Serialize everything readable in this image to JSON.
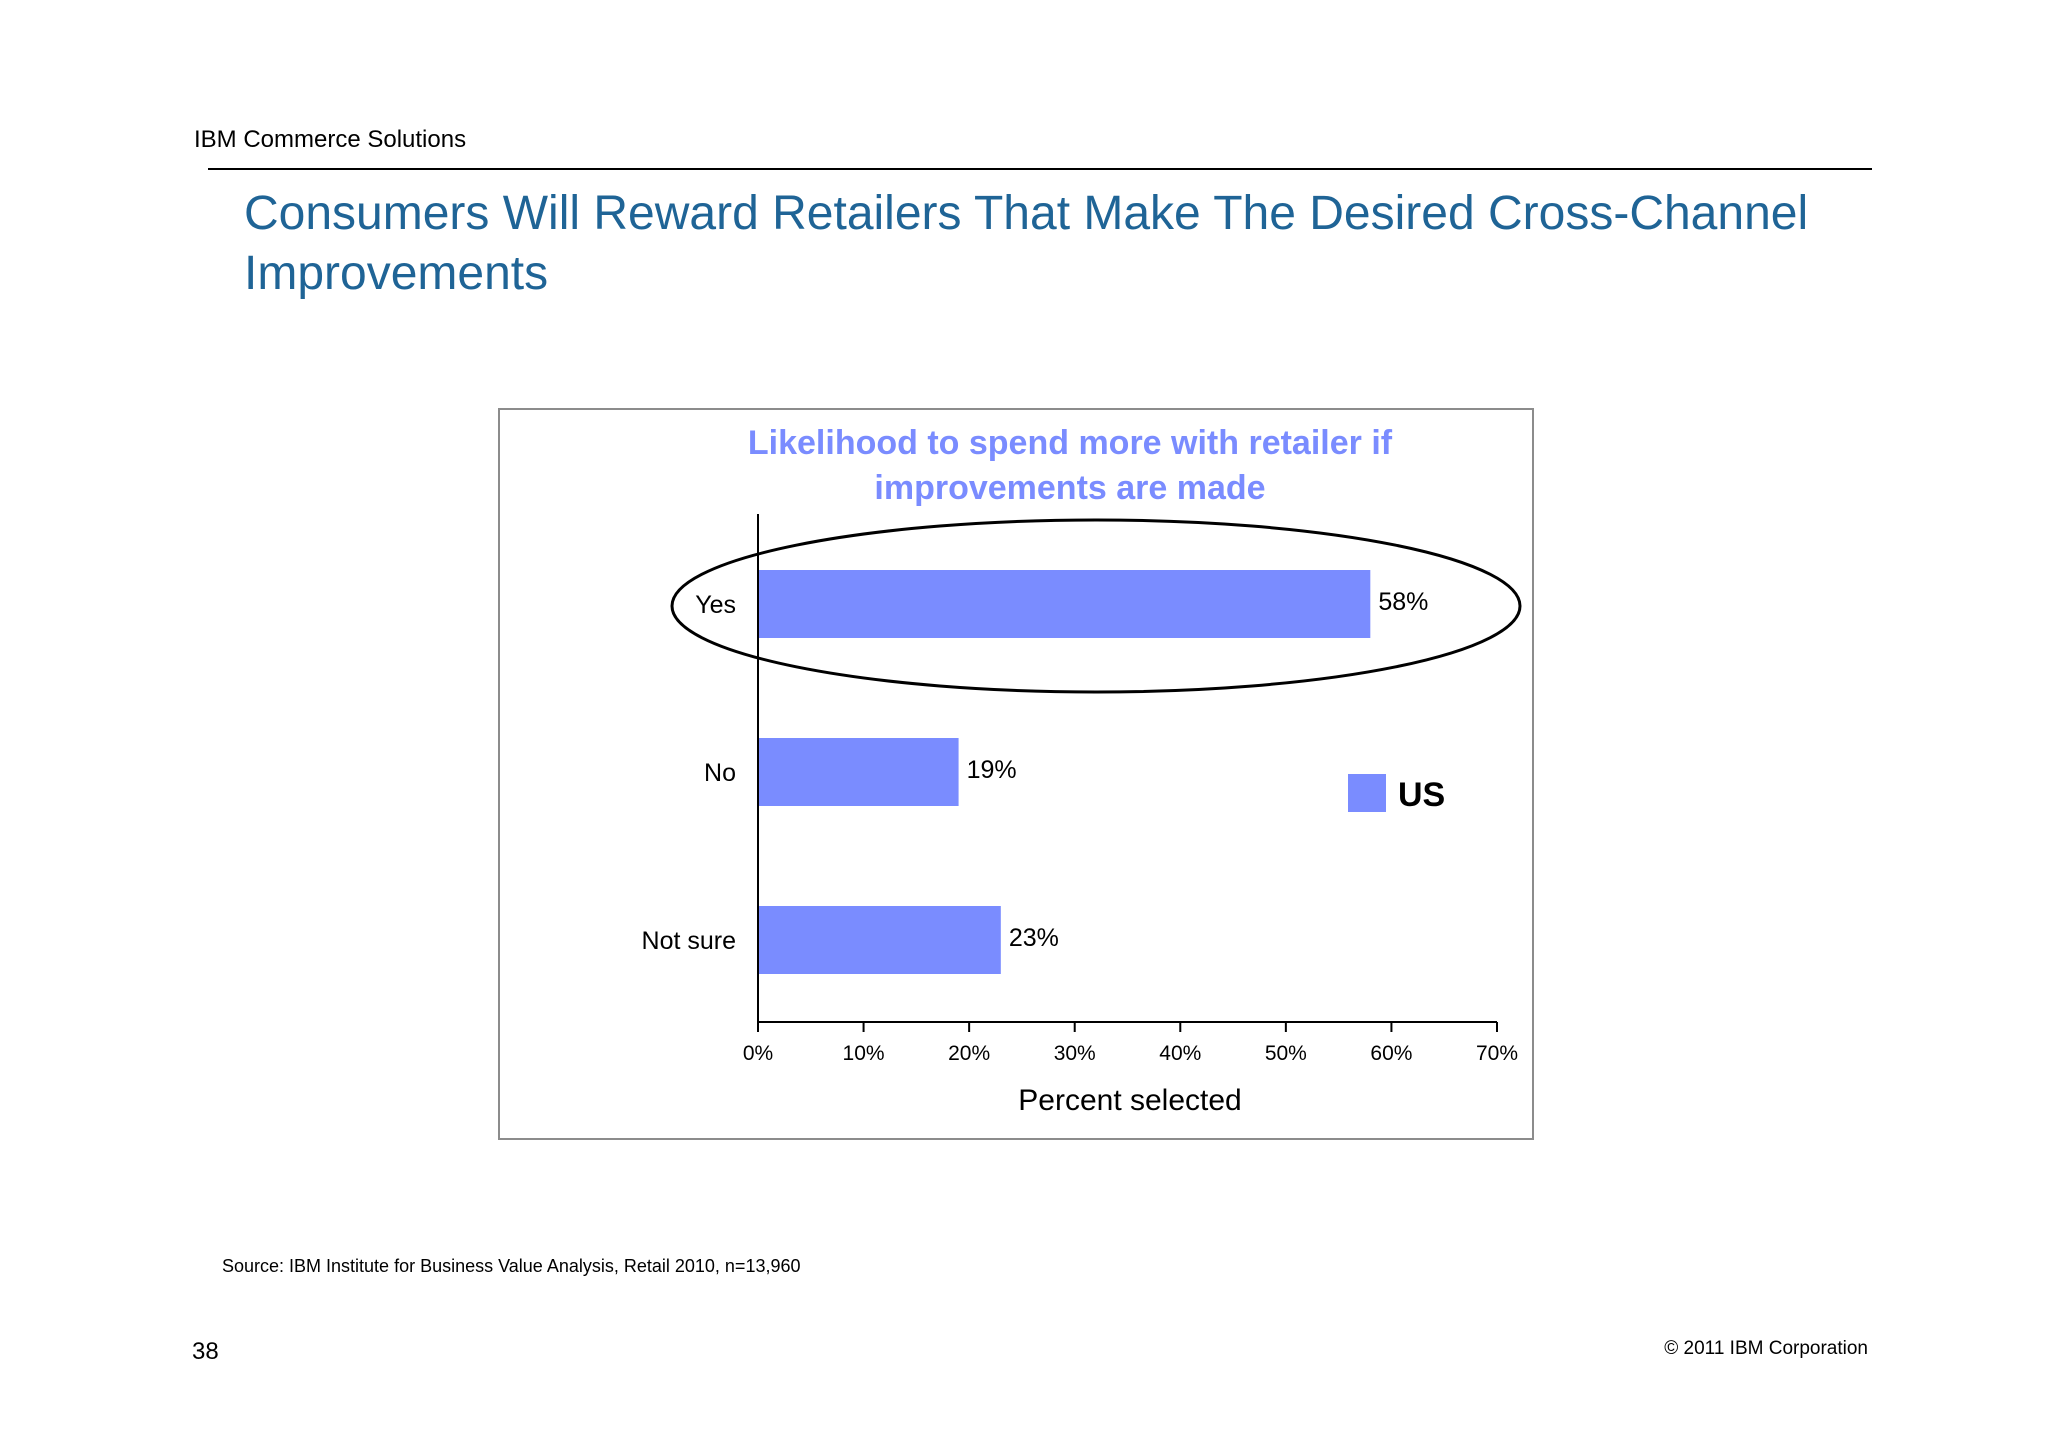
{
  "header": {
    "label": "IBM Commerce Solutions",
    "logo_text": "IBM"
  },
  "slide": {
    "title": "Consumers Will Reward Retailers That Make The Desired Cross-Channel Improvements"
  },
  "chart_data": {
    "type": "bar",
    "orientation": "horizontal",
    "title_lines": [
      "Likelihood to spend more with retailer if",
      "improvements are made"
    ],
    "categories": [
      "Yes",
      "No",
      "Not sure"
    ],
    "series": [
      {
        "name": "US",
        "values": [
          58,
          19,
          23
        ],
        "color": "#7a8cff"
      }
    ],
    "data_labels": [
      "58%",
      "19%",
      "23%"
    ],
    "xlabel": "Percent selected",
    "xlim": [
      0,
      70
    ],
    "xticks": [
      0,
      10,
      20,
      30,
      40,
      50,
      60,
      70
    ],
    "xtick_labels": [
      "0%",
      "10%",
      "20%",
      "30%",
      "40%",
      "50%",
      "60%",
      "70%"
    ],
    "legend_position": "right",
    "highlight": "Yes",
    "title_color": "#7a8cff",
    "grid": false
  },
  "footer": {
    "source": "Source:  IBM Institute for Business Value Analysis, Retail 2010, n=13,960",
    "page_number": "38",
    "copyright": "© 2011 IBM Corporation"
  }
}
